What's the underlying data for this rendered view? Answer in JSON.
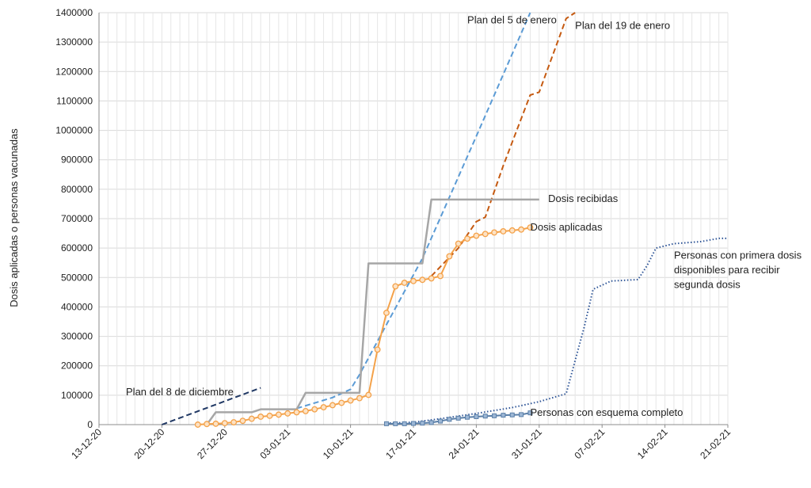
{
  "chart_data": {
    "type": "line",
    "title": "",
    "xlabel": "",
    "ylabel": "Dosis aplicadas o personas vacunadas",
    "ylim": [
      0,
      1400000
    ],
    "yticks": [
      0,
      100000,
      200000,
      300000,
      400000,
      500000,
      600000,
      700000,
      800000,
      900000,
      1000000,
      1100000,
      1200000,
      1300000,
      1400000
    ],
    "xlim": [
      "2020-12-13",
      "2021-02-21"
    ],
    "xticks": [
      "13-12-20",
      "20-12-20",
      "27-12-20",
      "03-01-21",
      "10-01-21",
      "17-01-21",
      "24-01-21",
      "31-01-21",
      "07-02-21",
      "14-02-21",
      "21-02-21"
    ],
    "grid": true,
    "legend": "none (inline annotations)",
    "series": [
      {
        "name": "Dosis aplicadas",
        "color": "#f4a24a",
        "marker_color": "#f4a24a",
        "style": "solid-markers",
        "points": [
          [
            "2020-12-24",
            0
          ],
          [
            "2020-12-25",
            2000
          ],
          [
            "2020-12-26",
            3000
          ],
          [
            "2020-12-27",
            5000
          ],
          [
            "2020-12-28",
            8000
          ],
          [
            "2020-12-29",
            13000
          ],
          [
            "2020-12-30",
            20000
          ],
          [
            "2020-12-31",
            27000
          ],
          [
            "2021-01-01",
            30000
          ],
          [
            "2021-01-02",
            34000
          ],
          [
            "2021-01-03",
            38000
          ],
          [
            "2021-01-04",
            42000
          ],
          [
            "2021-01-05",
            46000
          ],
          [
            "2021-01-06",
            52000
          ],
          [
            "2021-01-07",
            59000
          ],
          [
            "2021-01-08",
            66000
          ],
          [
            "2021-01-09",
            74000
          ],
          [
            "2021-01-10",
            82000
          ],
          [
            "2021-01-11",
            90000
          ],
          [
            "2021-01-12",
            101000
          ],
          [
            "2021-01-13",
            255000
          ],
          [
            "2021-01-14",
            380000
          ],
          [
            "2021-01-15",
            470000
          ],
          [
            "2021-01-16",
            482000
          ],
          [
            "2021-01-17",
            488000
          ],
          [
            "2021-01-18",
            492000
          ],
          [
            "2021-01-19",
            497000
          ],
          [
            "2021-01-20",
            505000
          ],
          [
            "2021-01-21",
            572000
          ],
          [
            "2021-01-22",
            615000
          ],
          [
            "2021-01-23",
            632000
          ],
          [
            "2021-01-24",
            642000
          ],
          [
            "2021-01-25",
            648000
          ],
          [
            "2021-01-26",
            653000
          ],
          [
            "2021-01-27",
            657000
          ],
          [
            "2021-01-28",
            660000
          ],
          [
            "2021-01-29",
            663000
          ],
          [
            "2021-01-30",
            670000
          ]
        ]
      },
      {
        "name": "Dosis recibidas",
        "color": "#a6a6a6",
        "style": "step",
        "points": [
          [
            "2020-12-25",
            0
          ],
          [
            "2020-12-26",
            42000
          ],
          [
            "2020-12-30",
            42000
          ],
          [
            "2020-12-31",
            52000
          ],
          [
            "2021-01-04",
            52000
          ],
          [
            "2021-01-05",
            108000
          ],
          [
            "2021-01-11",
            108000
          ],
          [
            "2021-01-12",
            548000
          ],
          [
            "2021-01-18",
            548000
          ],
          [
            "2021-01-19",
            765000
          ],
          [
            "2021-01-31",
            765000
          ]
        ]
      },
      {
        "name": "Plan del 8 de diciembre",
        "color": "#203864",
        "style": "dashed",
        "points": [
          [
            "2020-12-20",
            0
          ],
          [
            "2020-12-31",
            125000
          ]
        ]
      },
      {
        "name": "Plan del 5 de enero",
        "color": "#5b9bd5",
        "style": "dashed",
        "points": [
          [
            "2021-01-04",
            55000
          ],
          [
            "2021-01-08",
            92000
          ],
          [
            "2021-01-10",
            120000
          ],
          [
            "2021-01-11",
            170000
          ],
          [
            "2021-01-14",
            340000
          ],
          [
            "2021-01-18",
            565000
          ],
          [
            "2021-01-24",
            980000
          ],
          [
            "2021-01-30",
            1400000
          ]
        ]
      },
      {
        "name": "Plan del 19 de enero",
        "color": "#c55a11",
        "style": "dashed",
        "points": [
          [
            "2021-01-19",
            505000
          ],
          [
            "2021-01-22",
            600000
          ],
          [
            "2021-01-24",
            690000
          ],
          [
            "2021-01-25",
            705000
          ],
          [
            "2021-01-27",
            880000
          ],
          [
            "2021-01-30",
            1120000
          ],
          [
            "2021-01-31",
            1130000
          ],
          [
            "2021-02-03",
            1380000
          ],
          [
            "2021-02-04",
            1400000
          ]
        ]
      },
      {
        "name": "Personas con esquema completo",
        "color": "#5a7fa8",
        "style": "solid-square-markers",
        "points": [
          [
            "2021-01-14",
            3000
          ],
          [
            "2021-01-15",
            3000
          ],
          [
            "2021-01-16",
            3000
          ],
          [
            "2021-01-17",
            4000
          ],
          [
            "2021-01-18",
            5000
          ],
          [
            "2021-01-19",
            7000
          ],
          [
            "2021-01-20",
            12000
          ],
          [
            "2021-01-21",
            18000
          ],
          [
            "2021-01-22",
            22000
          ],
          [
            "2021-01-23",
            25000
          ],
          [
            "2021-01-24",
            27000
          ],
          [
            "2021-01-25",
            29000
          ],
          [
            "2021-01-26",
            30000
          ],
          [
            "2021-01-27",
            32000
          ],
          [
            "2021-01-28",
            33000
          ],
          [
            "2021-01-29",
            34000
          ],
          [
            "2021-01-30",
            40000
          ]
        ]
      },
      {
        "name": "Personas con primera dosis disponibles para recibir segunda dosis",
        "color": "#2e5597",
        "style": "dotted",
        "points": [
          [
            "2021-01-14",
            5000
          ],
          [
            "2021-01-17",
            8000
          ],
          [
            "2021-01-20",
            20000
          ],
          [
            "2021-01-24",
            38000
          ],
          [
            "2021-01-28",
            58000
          ],
          [
            "2021-01-31",
            78000
          ],
          [
            "2021-02-03",
            105000
          ],
          [
            "2021-02-05",
            330000
          ],
          [
            "2021-02-06",
            460000
          ],
          [
            "2021-02-08",
            488000
          ],
          [
            "2021-02-11",
            493000
          ],
          [
            "2021-02-12",
            540000
          ],
          [
            "2021-02-13",
            600000
          ],
          [
            "2021-02-15",
            615000
          ],
          [
            "2021-02-18",
            622000
          ],
          [
            "2021-02-20",
            633000
          ],
          [
            "2021-02-21",
            633000
          ]
        ]
      }
    ],
    "annotations": [
      {
        "text": "Plan del 5 de enero",
        "anchor": "2021-01-23",
        "y": 1375000
      },
      {
        "text": "Plan del 19 de enero",
        "anchor": "2021-02-04",
        "y": 1355000
      },
      {
        "text": "Dosis recibidas",
        "anchor": "2021-02-01",
        "y": 767000
      },
      {
        "text": "Dosis aplicadas",
        "anchor": "2021-01-30",
        "y": 670000
      },
      {
        "text": "Plan del 8 de diciembre",
        "anchor": "2020-12-16",
        "y": 110000
      },
      {
        "text": "Personas con esquema completo",
        "anchor": "2021-01-30",
        "y": 40000
      },
      {
        "text": "Personas con primera dosis",
        "anchor": "2021-02-15",
        "y": 575000
      },
      {
        "text": "disponibles para recibir",
        "anchor": "2021-02-15",
        "y": 525000
      },
      {
        "text": "segunda dosis",
        "anchor": "2021-02-15",
        "y": 475000
      }
    ]
  }
}
